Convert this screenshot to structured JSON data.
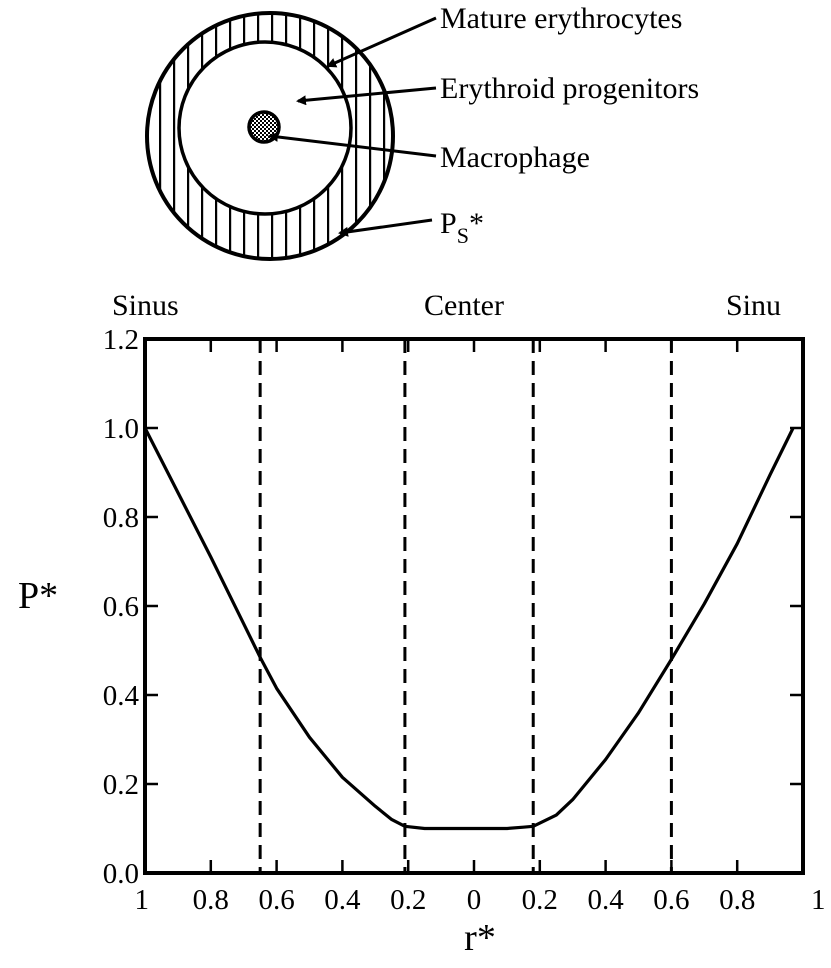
{
  "diagram": {
    "labels": {
      "mature": "Mature erythrocytes",
      "progenitors": "Erythroid progenitors",
      "macrophage": "Macrophage",
      "ps_main": "P",
      "ps_sub": "S",
      "ps_star": "*"
    }
  },
  "chart_data": {
    "type": "line",
    "region_labels": [
      "Sinus",
      "Center",
      "Sinu"
    ],
    "xlabel": "r*",
    "ylabel": "P*",
    "xlim": [
      -1,
      1
    ],
    "ylim": [
      0,
      1.2
    ],
    "y_ticks": [
      "0.0",
      "0.2",
      "0.4",
      "0.6",
      "0.8",
      "1.0",
      "1.2"
    ],
    "x_ticks": [
      {
        "value": -1,
        "label": "1"
      },
      {
        "value": -0.8,
        "label": "0.8"
      },
      {
        "value": -0.6,
        "label": "0.6"
      },
      {
        "value": -0.4,
        "label": "0.4"
      },
      {
        "value": -0.2,
        "label": "0.2"
      },
      {
        "value": 0,
        "label": "0"
      },
      {
        "value": 0.2,
        "label": "0.2"
      },
      {
        "value": 0.4,
        "label": "0.4"
      },
      {
        "value": 0.6,
        "label": "0.6"
      },
      {
        "value": 0.8,
        "label": "0.8"
      },
      {
        "value": 1,
        "label": "1"
      }
    ],
    "vlines": [
      -0.65,
      -0.21,
      0.18,
      0.6
    ],
    "series": [
      {
        "x": [
          -1.0,
          -0.9,
          -0.8,
          -0.7,
          -0.65,
          -0.6,
          -0.5,
          -0.4,
          -0.3,
          -0.25,
          -0.21,
          -0.15,
          -0.1,
          0.0,
          0.1,
          0.15,
          0.18,
          0.25,
          0.3,
          0.4,
          0.5,
          0.6,
          0.7,
          0.8,
          0.9,
          0.97
        ],
        "y": [
          1.0,
          0.855,
          0.71,
          0.56,
          0.485,
          0.415,
          0.305,
          0.215,
          0.15,
          0.12,
          0.105,
          0.1,
          0.1,
          0.1,
          0.1,
          0.103,
          0.105,
          0.13,
          0.165,
          0.255,
          0.36,
          0.48,
          0.605,
          0.74,
          0.895,
          1.0
        ]
      }
    ]
  }
}
